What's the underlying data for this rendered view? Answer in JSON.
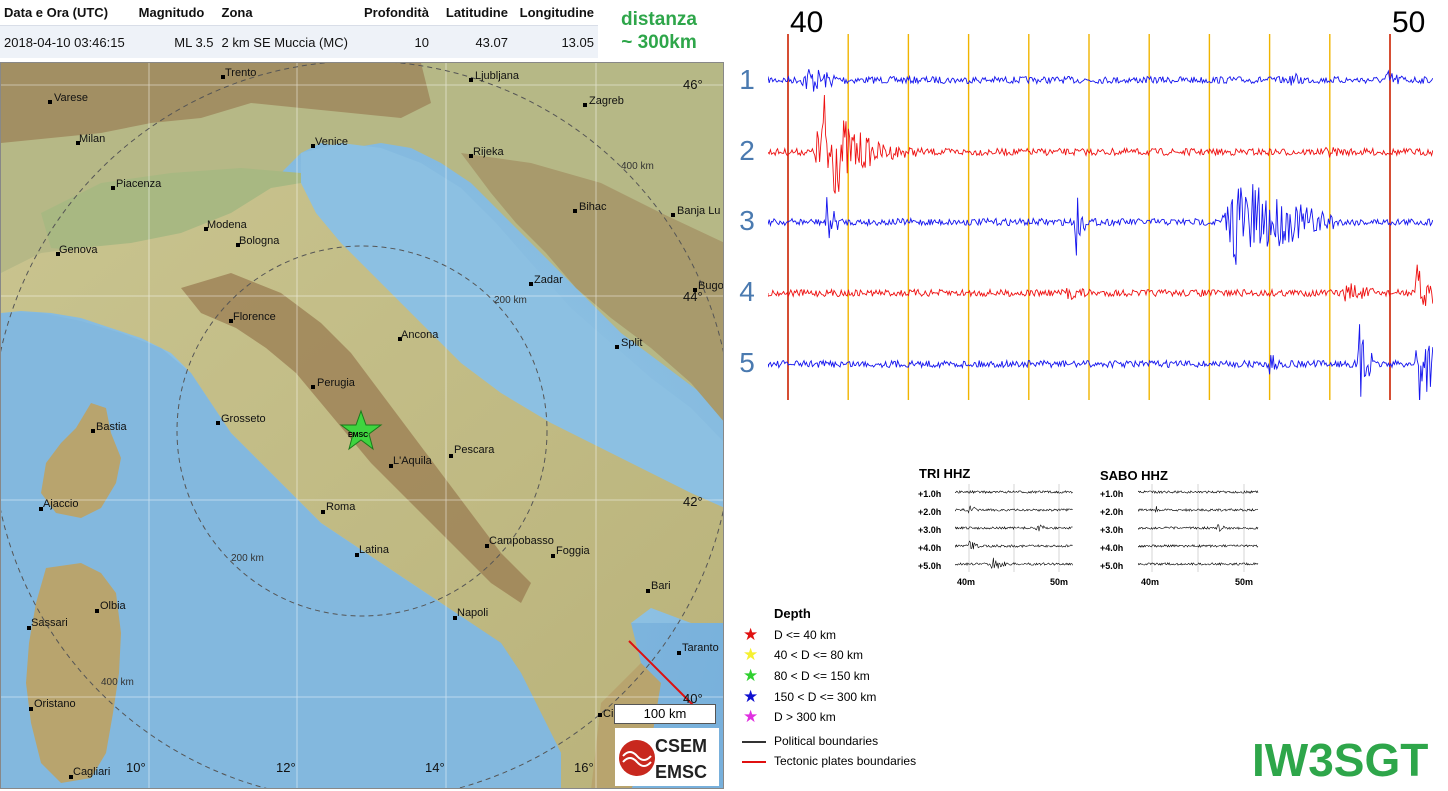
{
  "event_table": {
    "headers": [
      "Data e Ora (UTC)",
      "Magnitudo",
      "Zona",
      "Profondità",
      "Latitudine",
      "Longitudine"
    ],
    "row": {
      "datetime": "2018-04-10 03:46:15",
      "magnitude": "ML 3.5",
      "zone": "2 km SE Muccia (MC)",
      "depth": "10",
      "latitude": "43.07",
      "longitude": "13.05"
    }
  },
  "distance_note": {
    "line1": "distanza",
    "line2": "~ 300km"
  },
  "map": {
    "cities": [
      "Trento",
      "Ljubljana",
      "Varese",
      "Zagreb",
      "Milan",
      "Venice",
      "Rijeka",
      "Piacenza",
      "Bihac",
      "Banja Lu",
      "Modena",
      "Bologna",
      "Genova",
      "Zadar",
      "Bugo",
      "Florence",
      "Ancona",
      "Split",
      "Perugia",
      "Grosseto",
      "Bastia",
      "EMSC",
      "Pescara",
      "L'Aquila",
      "Ajaccio",
      "Roma",
      "Campobasso",
      "Latina",
      "Foggia",
      "Bari",
      "Olbia",
      "Napoli",
      "Sassari",
      "Taranto",
      "Oristano",
      "Cagliari",
      "Ci"
    ],
    "ring_labels": [
      "400 km",
      "200 km",
      "200 km",
      "400 km"
    ],
    "lat_labels": [
      "46°",
      "44°",
      "42°",
      "40°"
    ],
    "lon_labels": [
      "10°",
      "12°",
      "14°",
      "16°"
    ],
    "scale_bar": "100 km",
    "epicenter_color": "#3fd43f"
  },
  "seismogram": {
    "time_start_label": "40",
    "time_end_label": "50",
    "rows": [
      "1",
      "2",
      "3",
      "4",
      "5"
    ],
    "colors": {
      "blue": "#1515ee",
      "red": "#ee1111",
      "minute_line": "#f0b400",
      "hour_line": "#cc2200"
    }
  },
  "mini_seismograms": [
    {
      "title": "TRI HHZ",
      "rows": [
        "+1.0h",
        "+2.0h",
        "+3.0h",
        "+4.0h",
        "+5.0h"
      ],
      "axis": [
        "40m",
        "50m"
      ]
    },
    {
      "title": "SABO HHZ",
      "rows": [
        "+1.0h",
        "+2.0h",
        "+3.0h",
        "+4.0h",
        "+5.0h"
      ],
      "axis": [
        "40m",
        "50m"
      ]
    }
  ],
  "legend": {
    "title": "Depth",
    "items": [
      {
        "label": "D <= 40 km",
        "color": "#e01010"
      },
      {
        "label": "40 < D <= 80 km",
        "color": "#f5f030"
      },
      {
        "label": "80 < D <= 150 km",
        "color": "#30d030"
      },
      {
        "label": "150 < D <= 300 km",
        "color": "#1010d0"
      },
      {
        "label": "D > 300 km",
        "color": "#e030e0"
      }
    ],
    "lines": [
      {
        "label": "Political boundaries",
        "color": "#333333"
      },
      {
        "label": "Tectonic plates boundaries",
        "color": "#e01010"
      }
    ]
  },
  "logo": {
    "top": "CSEM",
    "bottom": "EMSC"
  },
  "callsign": "IW3SGT"
}
